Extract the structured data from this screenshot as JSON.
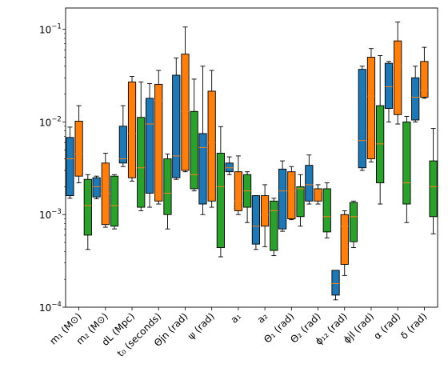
{
  "chart_data": {
    "type": "box",
    "yscale": "log",
    "ylim": [
      0.0001,
      0.17
    ],
    "yticks": [
      {
        "value": 0.0001,
        "base": "10",
        "exp": "−4"
      },
      {
        "value": 0.001,
        "base": "10",
        "exp": "−3"
      },
      {
        "value": 0.01,
        "base": "10",
        "exp": "−2"
      },
      {
        "value": 0.1,
        "base": "10",
        "exp": "−1"
      }
    ],
    "categories": [
      "m₁ (M⊙)",
      "m₂ (M⊙)",
      "dL (Mpc)",
      "t₀ (seconds)",
      "Θjn (rad)",
      "ψ (rad)",
      "a₁",
      "a₂",
      "Θ₁ (rad)",
      "Θ₂ (rad)",
      "ϕ₁₂ (rad)",
      "ϕjl (rad)",
      "α (rad)",
      "δ (rad)"
    ],
    "series_colors": [
      "#1f77b4",
      "#ff7f0e",
      "#2ca02c"
    ],
    "median_color": "#ff7f0e",
    "boxes": [
      [
        {
          "wlo": 0.0015,
          "q1": 0.0016,
          "med": 0.004,
          "q3": 0.0068,
          "whi": 0.0088
        },
        {
          "wlo": 0.0022,
          "q1": 0.0026,
          "med": 0.0045,
          "q3": 0.0102,
          "whi": 0.015
        },
        {
          "wlo": 0.00042,
          "q1": 0.0006,
          "med": 0.00125,
          "q3": 0.0024,
          "whi": 0.0027
        }
      ],
      [
        {
          "wlo": 0.00148,
          "q1": 0.00155,
          "med": 0.002,
          "q3": 0.0025,
          "whi": 0.0026
        },
        {
          "wlo": 0.00073,
          "q1": 0.00078,
          "med": 0.0017,
          "q3": 0.0036,
          "whi": 0.0046
        },
        {
          "wlo": 0.0007,
          "q1": 0.00075,
          "med": 0.00125,
          "q3": 0.0026,
          "whi": 0.0027
        }
      ],
      [
        {
          "wlo": 0.0033,
          "q1": 0.0036,
          "med": 0.004,
          "q3": 0.009,
          "whi": 0.015
        },
        {
          "wlo": 0.0023,
          "q1": 0.0025,
          "med": 0.0075,
          "q3": 0.027,
          "whi": 0.031
        },
        {
          "wlo": 0.0011,
          "q1": 0.0012,
          "med": 0.0032,
          "q3": 0.0112,
          "whi": 0.027
        }
      ],
      [
        {
          "wlo": 0.0012,
          "q1": 0.0017,
          "med": 0.0095,
          "q3": 0.018,
          "whi": 0.026
        },
        {
          "wlo": 0.0013,
          "q1": 0.0014,
          "med": 0.017,
          "q3": 0.0255,
          "whi": 0.036
        },
        {
          "wlo": 0.0007,
          "q1": 0.001,
          "med": 0.0017,
          "q3": 0.004,
          "whi": 0.0045
        }
      ],
      [
        {
          "wlo": 0.0024,
          "q1": 0.0025,
          "med": 0.0043,
          "q3": 0.032,
          "whi": 0.049
        },
        {
          "wlo": 0.0029,
          "q1": 0.003,
          "med": 0.013,
          "q3": 0.054,
          "whi": 0.106
        },
        {
          "wlo": 0.0018,
          "q1": 0.0019,
          "med": 0.0027,
          "q3": 0.013,
          "whi": 0.029
        }
      ],
      [
        {
          "wlo": 0.001,
          "q1": 0.0013,
          "med": 0.0053,
          "q3": 0.0075,
          "whi": 0.04
        },
        {
          "wlo": 0.0012,
          "q1": 0.0014,
          "med": 0.006,
          "q3": 0.0215,
          "whi": 0.036
        },
        {
          "wlo": 0.00035,
          "q1": 0.00044,
          "med": 0.002,
          "q3": 0.0046,
          "whi": 0.0089
        }
      ],
      [
        {
          "wlo": 0.0027,
          "q1": 0.0029,
          "med": 0.0032,
          "q3": 0.0036,
          "whi": 0.0042
        },
        {
          "wlo": 0.001,
          "q1": 0.0011,
          "med": 0.0014,
          "q3": 0.0029,
          "whi": 0.0043
        },
        {
          "wlo": 0.00082,
          "q1": 0.0012,
          "med": 0.0018,
          "q3": 0.0027,
          "whi": 0.0029
        }
      ],
      [
        {
          "wlo": 0.00042,
          "q1": 0.00048,
          "med": 0.00075,
          "q3": 0.0016,
          "whi": 0.0016
        },
        {
          "wlo": 0.00045,
          "q1": 0.00075,
          "med": 0.001,
          "q3": 0.0016,
          "whi": 0.0021
        },
        {
          "wlo": 0.00036,
          "q1": 0.00041,
          "med": 0.0011,
          "q3": 0.0014,
          "whi": 0.0015
        }
      ],
      [
        {
          "wlo": 0.00066,
          "q1": 0.0007,
          "med": 0.0018,
          "q3": 0.0031,
          "whi": 0.0038
        },
        {
          "wlo": 0.00088,
          "q1": 0.0009,
          "med": 0.0018,
          "q3": 0.0029,
          "whi": 0.0033
        },
        {
          "wlo": 0.00075,
          "q1": 0.00095,
          "med": 0.0019,
          "q3": 0.002,
          "whi": 0.0027
        }
      ],
      [
        {
          "wlo": 0.0013,
          "q1": 0.0014,
          "med": 0.0021,
          "q3": 0.0034,
          "whi": 0.0044
        },
        {
          "wlo": 0.0013,
          "q1": 0.0014,
          "med": 0.0018,
          "q3": 0.0019,
          "whi": 0.0021
        },
        {
          "wlo": 0.00056,
          "q1": 0.00065,
          "med": 0.00095,
          "q3": 0.0019,
          "whi": 0.0022
        }
      ],
      [
        {
          "wlo": 0.00012,
          "q1": 0.000135,
          "med": 0.00018,
          "q3": 0.00025,
          "whi": 0.00025
        },
        {
          "wlo": 0.00022,
          "q1": 0.00029,
          "med": 0.00075,
          "q3": 0.001,
          "whi": 0.0011
        },
        {
          "wlo": 0.00044,
          "q1": 0.00051,
          "med": 0.00095,
          "q3": 0.00135,
          "whi": 0.0014
        }
      ],
      [
        {
          "wlo": 0.003,
          "q1": 0.0032,
          "med": 0.0063,
          "q3": 0.037,
          "whi": 0.04
        },
        {
          "wlo": 0.0037,
          "q1": 0.004,
          "med": 0.019,
          "q3": 0.05,
          "whi": 0.062
        },
        {
          "wlo": 0.0013,
          "q1": 0.0022,
          "med": 0.0058,
          "q3": 0.015,
          "whi": 0.052
        }
      ],
      [
        {
          "wlo": 0.01,
          "q1": 0.014,
          "med": 0.024,
          "q3": 0.043,
          "whi": 0.045
        },
        {
          "wlo": 0.0095,
          "q1": 0.012,
          "med": 0.041,
          "q3": 0.075,
          "whi": 0.12
        },
        {
          "wlo": 0.00082,
          "q1": 0.0013,
          "med": 0.0022,
          "q3": 0.01,
          "whi": 0.0115
        }
      ],
      [
        {
          "wlo": 0.01,
          "q1": 0.0105,
          "med": 0.0185,
          "q3": 0.03,
          "whi": 0.04
        },
        {
          "wlo": 0.018,
          "q1": 0.0185,
          "med": 0.022,
          "q3": 0.045,
          "whi": 0.064
        },
        {
          "wlo": 0.00062,
          "q1": 0.00095,
          "med": 0.002,
          "q3": 0.0038,
          "whi": 0.0085
        }
      ]
    ]
  }
}
